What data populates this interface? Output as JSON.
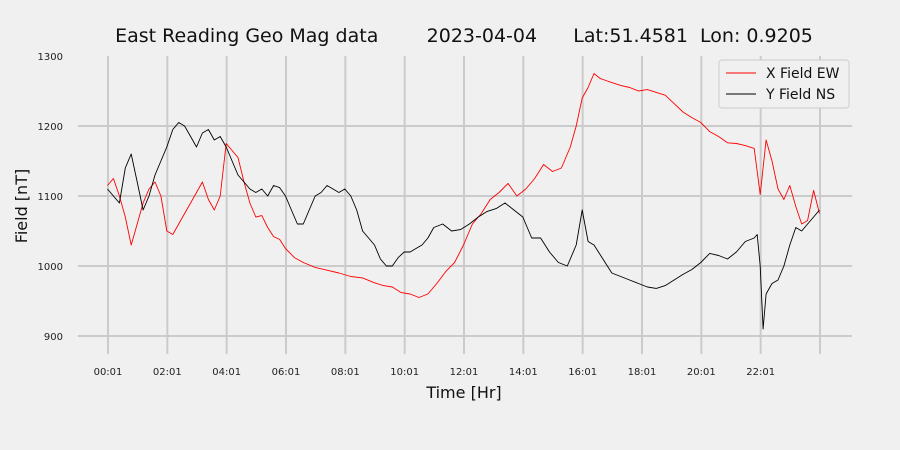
{
  "chart_data": {
    "type": "line",
    "title": "East Reading Geo Mag data        2023-04-04      Lat:51.4581  Lon: 0.9205",
    "xlabel": "Time  [Hr]",
    "ylabel": "Field  [nT]",
    "xlim": [
      0,
      24.2
    ],
    "ylim": [
      870,
      1300
    ],
    "x_ticks": [
      0.0167,
      2.0167,
      4.0167,
      6.0167,
      8.0167,
      10.0167,
      12.0167,
      14.0167,
      16.0167,
      18.0167,
      20.0167,
      22.0167,
      24.0167
    ],
    "x_tick_labels": [
      "00:01",
      "02:01",
      "04:01",
      "06:01",
      "08:01",
      "10:01",
      "12:01",
      "14:01",
      "16:01",
      "18:01",
      "20:01",
      "22:01",
      ""
    ],
    "y_ticks": [
      900,
      1000,
      1100,
      1200,
      1300
    ],
    "grid": true,
    "legend_position": "top-right",
    "series": [
      {
        "name": "X Field EW",
        "color": "#ff0000",
        "x": [
          0.0,
          0.2,
          0.4,
          0.6,
          0.8,
          1.0,
          1.2,
          1.4,
          1.6,
          1.8,
          2.0,
          2.2,
          2.4,
          2.6,
          2.8,
          3.0,
          3.2,
          3.4,
          3.6,
          3.8,
          4.0,
          4.2,
          4.4,
          4.6,
          4.8,
          5.0,
          5.2,
          5.4,
          5.6,
          5.8,
          6.0,
          6.3,
          6.6,
          7.0,
          7.4,
          7.8,
          8.2,
          8.6,
          9.0,
          9.3,
          9.6,
          9.9,
          10.2,
          10.5,
          10.8,
          11.1,
          11.4,
          11.7,
          12.0,
          12.3,
          12.6,
          12.9,
          13.2,
          13.5,
          13.8,
          14.1,
          14.4,
          14.7,
          15.0,
          15.3,
          15.6,
          15.8,
          16.0,
          16.2,
          16.4,
          16.6,
          16.8,
          17.0,
          17.3,
          17.6,
          17.9,
          18.2,
          18.5,
          18.8,
          19.1,
          19.4,
          19.7,
          20.0,
          20.3,
          20.6,
          20.9,
          21.2,
          21.5,
          21.8,
          22.0,
          22.2,
          22.4,
          22.6,
          22.8,
          23.0,
          23.2,
          23.4,
          23.6,
          23.8,
          24.0
        ],
        "values": [
          1115,
          1125,
          1100,
          1070,
          1030,
          1060,
          1090,
          1110,
          1120,
          1100,
          1050,
          1045,
          1060,
          1075,
          1090,
          1105,
          1120,
          1095,
          1080,
          1100,
          1175,
          1165,
          1155,
          1120,
          1090,
          1070,
          1072,
          1055,
          1042,
          1038,
          1025,
          1012,
          1005,
          998,
          994,
          990,
          985,
          983,
          976,
          972,
          970,
          962,
          960,
          955,
          960,
          975,
          992,
          1005,
          1030,
          1060,
          1075,
          1095,
          1105,
          1118,
          1100,
          1110,
          1125,
          1145,
          1135,
          1140,
          1170,
          1200,
          1240,
          1255,
          1275,
          1268,
          1265,
          1262,
          1258,
          1255,
          1250,
          1252,
          1248,
          1244,
          1232,
          1220,
          1212,
          1205,
          1192,
          1185,
          1176,
          1175,
          1172,
          1168,
          1102,
          1180,
          1150,
          1110,
          1095,
          1115,
          1085,
          1060,
          1065,
          1108,
          1075
        ]
      },
      {
        "name": "Y Field NS",
        "color": "#000000",
        "x": [
          0.0,
          0.2,
          0.4,
          0.6,
          0.8,
          1.0,
          1.2,
          1.4,
          1.6,
          1.8,
          2.0,
          2.2,
          2.4,
          2.6,
          2.8,
          3.0,
          3.2,
          3.4,
          3.6,
          3.8,
          4.0,
          4.2,
          4.4,
          4.6,
          4.8,
          5.0,
          5.2,
          5.4,
          5.6,
          5.8,
          6.0,
          6.2,
          6.4,
          6.6,
          6.8,
          7.0,
          7.2,
          7.4,
          7.6,
          7.8,
          8.0,
          8.2,
          8.4,
          8.6,
          8.8,
          9.0,
          9.2,
          9.4,
          9.6,
          9.8,
          10.0,
          10.2,
          10.4,
          10.6,
          10.8,
          11.0,
          11.3,
          11.6,
          11.9,
          12.2,
          12.5,
          12.8,
          13.1,
          13.4,
          13.7,
          14.0,
          14.3,
          14.6,
          14.9,
          15.2,
          15.5,
          15.8,
          16.0,
          16.2,
          16.4,
          16.7,
          17.0,
          17.3,
          17.6,
          17.9,
          18.2,
          18.5,
          18.8,
          19.1,
          19.4,
          19.7,
          20.0,
          20.3,
          20.6,
          20.9,
          21.2,
          21.5,
          21.8,
          21.9,
          22.0,
          22.1,
          22.2,
          22.4,
          22.6,
          22.8,
          23.0,
          23.2,
          23.4,
          23.6,
          23.8,
          24.0
        ],
        "values": [
          1110,
          1100,
          1090,
          1140,
          1160,
          1120,
          1080,
          1100,
          1130,
          1150,
          1170,
          1195,
          1205,
          1200,
          1185,
          1170,
          1190,
          1195,
          1180,
          1185,
          1170,
          1150,
          1130,
          1120,
          1110,
          1105,
          1110,
          1100,
          1115,
          1112,
          1100,
          1080,
          1060,
          1060,
          1080,
          1100,
          1105,
          1115,
          1110,
          1105,
          1110,
          1100,
          1080,
          1050,
          1040,
          1030,
          1010,
          1000,
          1000,
          1012,
          1020,
          1020,
          1025,
          1030,
          1040,
          1055,
          1060,
          1050,
          1052,
          1060,
          1070,
          1078,
          1082,
          1090,
          1080,
          1070,
          1040,
          1040,
          1020,
          1005,
          1000,
          1030,
          1080,
          1035,
          1030,
          1010,
          990,
          985,
          980,
          975,
          970,
          968,
          972,
          980,
          988,
          995,
          1005,
          1018,
          1015,
          1010,
          1020,
          1035,
          1040,
          1045,
          1000,
          910,
          960,
          975,
          980,
          1000,
          1030,
          1055,
          1050,
          1060,
          1070,
          1080
        ]
      }
    ]
  }
}
